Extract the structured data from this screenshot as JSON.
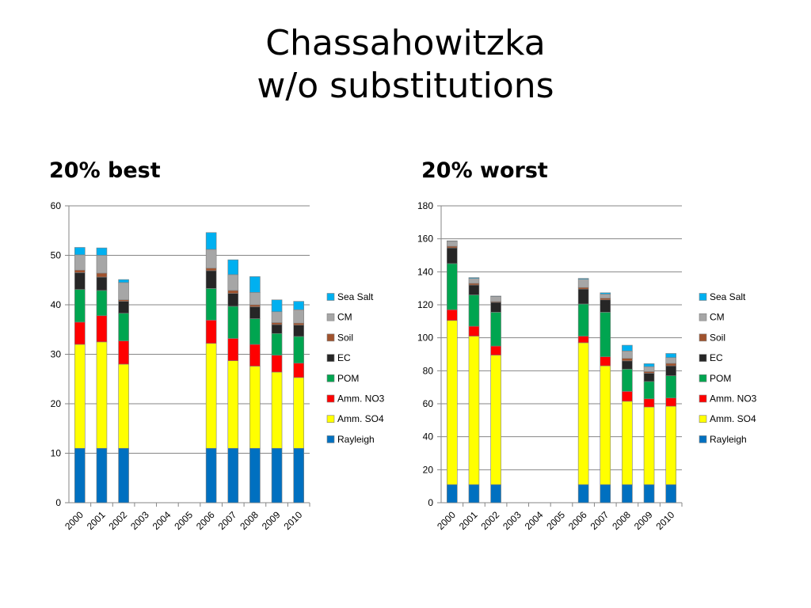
{
  "slide": {
    "title_line1": "Chassahowitzka",
    "title_line2": "w/o substitutions"
  },
  "colors": {
    "Rayleigh": "#0070C0",
    "Amm. SO4": "#FFFF00",
    "Amm. NO3": "#FF0000",
    "POM": "#00A550",
    "EC": "#262626",
    "Soil": "#A0522D",
    "CM": "#A6A6A6",
    "Sea Salt": "#00B0F0"
  },
  "chart_data": [
    {
      "type": "bar",
      "stacked": true,
      "title": "20% best",
      "xlabel": "",
      "ylabel": "",
      "ylim": [
        0,
        60
      ],
      "yticks": [
        0,
        10,
        20,
        30,
        40,
        50,
        60
      ],
      "grid": true,
      "legend_position": "right",
      "legend_order": [
        "Sea Salt",
        "CM",
        "Soil",
        "EC",
        "POM",
        "Amm. NO3",
        "Amm. SO4",
        "Rayleigh"
      ],
      "categories": [
        "2000",
        "2001",
        "2002",
        "2003",
        "2004",
        "2005",
        "2006",
        "2007",
        "2008",
        "2009",
        "2010"
      ],
      "series": [
        {
          "name": "Rayleigh",
          "values": [
            11,
            11,
            11,
            null,
            null,
            null,
            11,
            11,
            11,
            11,
            11
          ]
        },
        {
          "name": "Amm. SO4",
          "values": [
            21,
            21.5,
            17,
            null,
            null,
            null,
            21.2,
            17.7,
            16.6,
            15.4,
            14.3
          ]
        },
        {
          "name": "Amm. NO3",
          "values": [
            4.5,
            5.3,
            4.7,
            null,
            null,
            null,
            4.7,
            4.5,
            4.4,
            3.4,
            2.9
          ]
        },
        {
          "name": "POM",
          "values": [
            6.6,
            5.1,
            5.6,
            null,
            null,
            null,
            6.4,
            6.5,
            5.2,
            4.4,
            5.4
          ]
        },
        {
          "name": "EC",
          "values": [
            3.4,
            2.7,
            2.4,
            null,
            null,
            null,
            3.6,
            2.6,
            2.4,
            1.8,
            2.3
          ]
        },
        {
          "name": "Soil",
          "values": [
            0.5,
            0.8,
            0.3,
            null,
            null,
            null,
            0.5,
            0.6,
            0.4,
            0.4,
            0.4
          ]
        },
        {
          "name": "CM",
          "values": [
            3.1,
            3.6,
            3.5,
            null,
            null,
            null,
            3.8,
            3.2,
            2.5,
            2.2,
            2.7
          ]
        },
        {
          "name": "Sea Salt",
          "values": [
            1.5,
            1.5,
            0.6,
            null,
            null,
            null,
            3.4,
            3.0,
            3.2,
            2.4,
            1.7
          ]
        }
      ]
    },
    {
      "type": "bar",
      "stacked": true,
      "title": "20% worst",
      "xlabel": "",
      "ylabel": "",
      "ylim": [
        0,
        180
      ],
      "yticks": [
        0,
        20,
        40,
        60,
        80,
        100,
        120,
        140,
        160,
        180
      ],
      "grid": true,
      "legend_position": "right",
      "legend_order": [
        "Sea Salt",
        "CM",
        "Soil",
        "EC",
        "POM",
        "Amm. NO3",
        "Amm. SO4",
        "Rayleigh"
      ],
      "categories": [
        "2000",
        "2001",
        "2002",
        "2003",
        "2004",
        "2005",
        "2006",
        "2007",
        "2008",
        "2009",
        "2010"
      ],
      "series": [
        {
          "name": "Rayleigh",
          "values": [
            11,
            11,
            11,
            null,
            null,
            null,
            11,
            11,
            11,
            11,
            11
          ]
        },
        {
          "name": "Amm. SO4",
          "values": [
            99.5,
            90,
            78.5,
            null,
            null,
            null,
            86,
            72,
            50.5,
            47,
            47.5
          ]
        },
        {
          "name": "Amm. NO3",
          "values": [
            6.5,
            6,
            5.5,
            null,
            null,
            null,
            4,
            5.5,
            6,
            5,
            5
          ]
        },
        {
          "name": "POM",
          "values": [
            28,
            19,
            20.5,
            null,
            null,
            null,
            19.5,
            27,
            13.5,
            10.5,
            13.5
          ]
        },
        {
          "name": "EC",
          "values": [
            9.5,
            6,
            6,
            null,
            null,
            null,
            9,
            7.5,
            5,
            5,
            6
          ]
        },
        {
          "name": "Soil",
          "values": [
            1,
            1,
            0.5,
            null,
            null,
            null,
            1,
            1,
            1.5,
            1,
            1.5
          ]
        },
        {
          "name": "CM",
          "values": [
            3,
            3,
            3,
            null,
            null,
            null,
            5,
            2.5,
            4.5,
            3,
            3.5
          ]
        },
        {
          "name": "Sea Salt",
          "values": [
            0.3,
            0.5,
            0.3,
            null,
            null,
            null,
            0.5,
            0.8,
            3.5,
            1.8,
            2.5
          ]
        }
      ]
    }
  ]
}
